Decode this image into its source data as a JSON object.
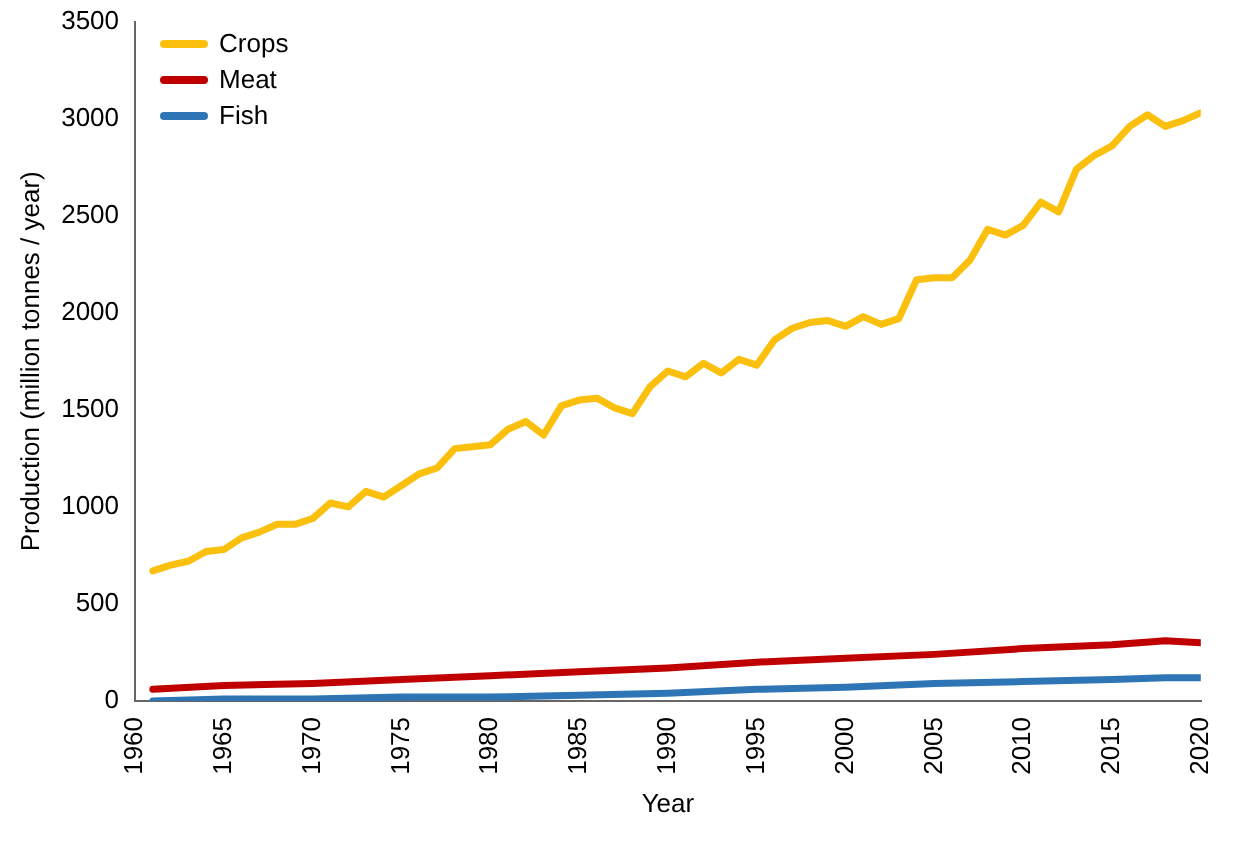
{
  "chart_data": {
    "type": "line",
    "xlabel": "Year",
    "ylabel": "Production (million tonnes / year)",
    "xlim": [
      1960,
      2020
    ],
    "xticks": [
      1960,
      1965,
      1970,
      1975,
      1980,
      1985,
      1990,
      1995,
      2000,
      2005,
      2010,
      2015,
      2020
    ],
    "ylim": [
      0,
      3500
    ],
    "yticks": [
      0,
      500,
      1000,
      1500,
      2000,
      2500,
      3000,
      3500
    ],
    "grid": false,
    "legend": "top left",
    "marker": "none",
    "line_style": "solid",
    "series": [
      {
        "name": "Crops",
        "color": "#fbbf0e",
        "x": [
          1961,
          1962,
          1963,
          1964,
          1965,
          1966,
          1967,
          1968,
          1969,
          1970,
          1971,
          1972,
          1973,
          1974,
          1975,
          1976,
          1977,
          1978,
          1979,
          1980,
          1981,
          1982,
          1983,
          1984,
          1985,
          1986,
          1987,
          1988,
          1989,
          1990,
          1991,
          1992,
          1993,
          1994,
          1995,
          1996,
          1997,
          1998,
          1999,
          2000,
          2001,
          2002,
          2003,
          2004,
          2005,
          2006,
          2007,
          2008,
          2009,
          2010,
          2011,
          2012,
          2013,
          2014,
          2015,
          2016,
          2017,
          2018,
          2019,
          2020
        ],
        "values": [
          670,
          700,
          720,
          770,
          780,
          840,
          870,
          910,
          910,
          940,
          1020,
          1000,
          1080,
          1050,
          1110,
          1170,
          1200,
          1300,
          1310,
          1320,
          1400,
          1440,
          1370,
          1520,
          1550,
          1560,
          1510,
          1480,
          1620,
          1700,
          1670,
          1740,
          1690,
          1760,
          1730,
          1860,
          1920,
          1950,
          1960,
          1930,
          1980,
          1940,
          1970,
          2170,
          2180,
          2180,
          2270,
          2430,
          2400,
          2450,
          2570,
          2520,
          2740,
          2810,
          2860,
          2960,
          3020,
          2960,
          2990,
          3030
        ]
      },
      {
        "name": "Meat",
        "color": "#c00000",
        "x": [
          1961,
          1965,
          1970,
          1975,
          1980,
          1985,
          1990,
          1995,
          2000,
          2005,
          2010,
          2015,
          2018,
          2020
        ],
        "values": [
          60,
          80,
          90,
          110,
          130,
          150,
          170,
          200,
          220,
          240,
          270,
          290,
          310,
          300
        ]
      },
      {
        "name": "Fish",
        "color": "#2e75b6",
        "x": [
          1961,
          1965,
          1970,
          1975,
          1980,
          1985,
          1990,
          1995,
          2000,
          2005,
          2010,
          2015,
          2018,
          2020
        ],
        "values": [
          0,
          10,
          10,
          20,
          20,
          30,
          40,
          60,
          70,
          90,
          100,
          110,
          120,
          120
        ]
      }
    ]
  }
}
